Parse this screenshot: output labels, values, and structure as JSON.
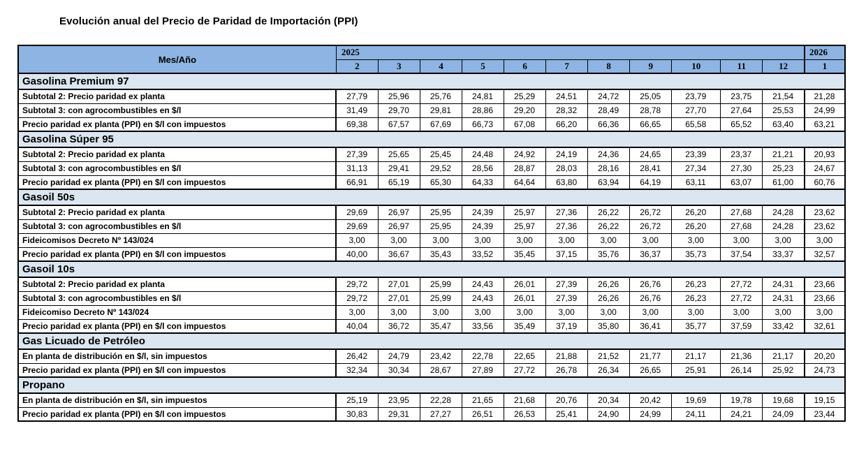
{
  "title": "Evolución anual del Precio de Paridad de Importación (PPI)",
  "table": {
    "corner_label": "Mes/Año",
    "year_left": "2025",
    "year_right": "2026",
    "months": [
      "2",
      "3",
      "4",
      "5",
      "6",
      "7",
      "8",
      "9",
      "10",
      "11",
      "12",
      "1"
    ],
    "colors": {
      "header_bg": "#8db4e2",
      "section_bg": "#dce6f1",
      "border": "#000000"
    },
    "sections": [
      {
        "name": "Gasolina Premium 97",
        "rows": [
          {
            "label": "Subtotal 2: Precio paridad ex planta",
            "values": [
              "27,79",
              "25,96",
              "25,76",
              "24,81",
              "25,29",
              "24,51",
              "24,72",
              "25,05",
              "23,79",
              "23,75",
              "21,54",
              "21,28"
            ]
          },
          {
            "label": "Subtotal 3: con agrocombustibles en $/l",
            "values": [
              "31,49",
              "29,70",
              "29,81",
              "28,86",
              "29,20",
              "28,32",
              "28,49",
              "28,78",
              "27,70",
              "27,64",
              "25,53",
              "24,99"
            ]
          },
          {
            "label": "Precio paridad ex planta (PPI) en $/l con impuestos",
            "values": [
              "69,38",
              "67,57",
              "67,69",
              "66,73",
              "67,08",
              "66,20",
              "66,36",
              "66,65",
              "65,58",
              "65,52",
              "63,40",
              "63,21"
            ]
          }
        ]
      },
      {
        "name": "Gasolina Súper 95",
        "rows": [
          {
            "label": "Subtotal 2: Precio paridad ex planta",
            "values": [
              "27,39",
              "25,65",
              "25,45",
              "24,48",
              "24,92",
              "24,19",
              "24,36",
              "24,65",
              "23,39",
              "23,37",
              "21,21",
              "20,93"
            ]
          },
          {
            "label": "Subtotal 3: con agrocombustibles en $/l",
            "values": [
              "31,13",
              "29,41",
              "29,52",
              "28,56",
              "28,87",
              "28,03",
              "28,16",
              "28,41",
              "27,34",
              "27,30",
              "25,23",
              "24,67"
            ]
          },
          {
            "label": "Precio paridad ex planta (PPI)  en $/l con impuestos",
            "values": [
              "66,91",
              "65,19",
              "65,30",
              "64,33",
              "64,64",
              "63,80",
              "63,94",
              "64,19",
              "63,11",
              "63,07",
              "61,00",
              "60,76"
            ]
          }
        ]
      },
      {
        "name": "Gasoil 50s",
        "rows": [
          {
            "label": "Subtotal 2: Precio paridad ex planta",
            "values": [
              "29,69",
              "26,97",
              "25,95",
              "24,39",
              "25,97",
              "27,36",
              "26,22",
              "26,72",
              "26,20",
              "27,68",
              "24,28",
              "23,62"
            ]
          },
          {
            "label": "Subtotal 3: con agrocombustibles en $/l",
            "values": [
              "29,69",
              "26,97",
              "25,95",
              "24,39",
              "25,97",
              "27,36",
              "26,22",
              "26,72",
              "26,20",
              "27,68",
              "24,28",
              "23,62"
            ]
          },
          {
            "label": "Fideicomisos Decreto Nº 143/024",
            "values": [
              "3,00",
              "3,00",
              "3,00",
              "3,00",
              "3,00",
              "3,00",
              "3,00",
              "3,00",
              "3,00",
              "3,00",
              "3,00",
              "3,00"
            ]
          },
          {
            "label": "Precio paridad ex planta (PPI) en $/l con impuestos",
            "values": [
              "40,00",
              "36,67",
              "35,43",
              "33,52",
              "35,45",
              "37,15",
              "35,76",
              "36,37",
              "35,73",
              "37,54",
              "33,37",
              "32,57"
            ]
          }
        ]
      },
      {
        "name": "Gasoil 10s",
        "rows": [
          {
            "label": "Subtotal 2: Precio paridad ex planta",
            "values": [
              "29,72",
              "27,01",
              "25,99",
              "24,43",
              "26,01",
              "27,39",
              "26,26",
              "26,76",
              "26,23",
              "27,72",
              "24,31",
              "23,66"
            ]
          },
          {
            "label": "Subtotal 3: con agrocombustibles en $/l",
            "values": [
              "29,72",
              "27,01",
              "25,99",
              "24,43",
              "26,01",
              "27,39",
              "26,26",
              "26,76",
              "26,23",
              "27,72",
              "24,31",
              "23,66"
            ]
          },
          {
            "label": "Fideicomiso Decreto Nº 143/024",
            "values": [
              "3,00",
              "3,00",
              "3,00",
              "3,00",
              "3,00",
              "3,00",
              "3,00",
              "3,00",
              "3,00",
              "3,00",
              "3,00",
              "3,00"
            ]
          },
          {
            "label": "Precio paridad ex planta (PPI) en $/l con impuestos",
            "values": [
              "40,04",
              "36,72",
              "35,47",
              "33,56",
              "35,49",
              "37,19",
              "35,80",
              "36,41",
              "35,77",
              "37,59",
              "33,42",
              "32,61"
            ]
          }
        ]
      },
      {
        "name": "Gas Licuado de Petróleo",
        "rows": [
          {
            "label": "En planta de distribución en $/l, sin impuestos",
            "values": [
              "26,42",
              "24,79",
              "23,42",
              "22,78",
              "22,65",
              "21,88",
              "21,52",
              "21,77",
              "21,17",
              "21,36",
              "21,17",
              "20,20"
            ]
          },
          {
            "label": "Precio paridad ex planta (PPI) en $/l con impuestos",
            "values": [
              "32,34",
              "30,34",
              "28,67",
              "27,89",
              "27,72",
              "26,78",
              "26,34",
              "26,65",
              "25,91",
              "26,14",
              "25,92",
              "24,73"
            ]
          }
        ]
      },
      {
        "name": "Propano",
        "rows": [
          {
            "label": "En planta de distribución en $/l, sin impuestos",
            "values": [
              "25,19",
              "23,95",
              "22,28",
              "21,65",
              "21,68",
              "20,76",
              "20,34",
              "20,42",
              "19,69",
              "19,78",
              "19,68",
              "19,15"
            ]
          },
          {
            "label": "Precio paridad ex planta (PPI) en $/l con impuestos",
            "values": [
              "30,83",
              "29,31",
              "27,27",
              "26,51",
              "26,53",
              "25,41",
              "24,90",
              "24,99",
              "24,11",
              "24,21",
              "24,09",
              "23,44"
            ]
          }
        ]
      }
    ]
  }
}
